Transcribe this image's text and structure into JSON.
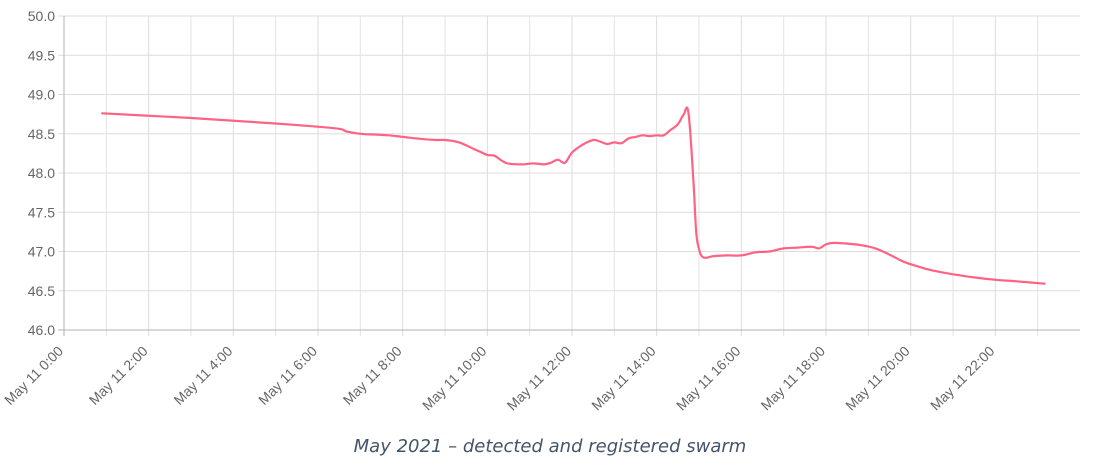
{
  "chart_data": {
    "type": "line",
    "title": "",
    "xlabel": "",
    "ylabel": "",
    "ylim": [
      46.0,
      50.0
    ],
    "y_ticks": [
      "46.0",
      "46.5",
      "47.0",
      "47.5",
      "48.0",
      "48.5",
      "49.0",
      "49.5",
      "50.0"
    ],
    "x_range_hours": [
      0,
      24
    ],
    "x_tick_labels": [
      "May 11 0:00",
      "May 11 2:00",
      "May 11 4:00",
      "May 11 6:00",
      "May 11 8:00",
      "May 11 10:00",
      "May 11 12:00",
      "May 11 14:00",
      "May 11 16:00",
      "May 11 18:00",
      "May 11 20:00",
      "May 11 22:00"
    ],
    "grid": true,
    "line_color": "#ff6384",
    "series": [
      {
        "x": [
          "May 11 0:54",
          "May 11 3:00",
          "May 11 5:00",
          "May 11 6:24",
          "May 11 6:40",
          "May 11 7:00",
          "May 11 7:20",
          "May 11 7:40",
          "May 11 8:00",
          "May 11 8:30",
          "May 11 8:48",
          "May 11 9:00",
          "May 11 9:20",
          "May 11 9:40",
          "May 11 9:50",
          "May 11 10:00",
          "May 11 10:10",
          "May 11 10:20",
          "May 11 10:30",
          "May 11 10:50",
          "May 11 11:00",
          "May 11 11:10",
          "May 11 11:20",
          "May 11 11:30",
          "May 11 11:40",
          "May 11 11:50",
          "May 11 12:00",
          "May 11 12:15",
          "May 11 12:30",
          "May 11 12:40",
          "May 11 12:50",
          "May 11 13:00",
          "May 11 13:10",
          "May 11 13:20",
          "May 11 13:30",
          "May 11 13:40",
          "May 11 13:50",
          "May 11 14:00",
          "May 11 14:10",
          "May 11 14:20",
          "May 11 14:30",
          "May 11 14:38",
          "May 11 14:45",
          "May 11 14:52",
          "May 11 14:56",
          "May 11 15:00",
          "May 11 15:04",
          "May 11 15:10",
          "May 11 15:20",
          "May 11 15:40",
          "May 11 16:00",
          "May 11 16:20",
          "May 11 16:40",
          "May 11 17:00",
          "May 11 17:20",
          "May 11 17:40",
          "May 11 17:50",
          "May 11 18:00",
          "May 11 18:10",
          "May 11 18:30",
          "May 11 18:50",
          "May 11 19:10",
          "May 11 19:30",
          "May 11 19:50",
          "May 11 20:10",
          "May 11 20:30",
          "May 11 21:00",
          "May 11 21:30",
          "May 11 22:00",
          "May 11 22:30",
          "May 11 23:10"
        ],
        "values": [
          48.76,
          48.7,
          48.63,
          48.57,
          48.53,
          48.5,
          48.49,
          48.48,
          48.46,
          48.43,
          48.42,
          48.42,
          48.39,
          48.31,
          48.27,
          48.23,
          48.22,
          48.16,
          48.12,
          48.11,
          48.12,
          48.12,
          48.11,
          48.13,
          48.17,
          48.13,
          48.26,
          48.36,
          48.42,
          48.4,
          48.37,
          48.39,
          48.38,
          48.44,
          48.46,
          48.48,
          48.47,
          48.48,
          48.48,
          48.55,
          48.62,
          48.74,
          48.77,
          47.9,
          47.25,
          47.03,
          46.94,
          46.92,
          46.94,
          46.95,
          46.95,
          46.99,
          47.0,
          47.04,
          47.05,
          47.06,
          47.04,
          47.09,
          47.11,
          47.1,
          47.08,
          47.04,
          46.96,
          46.87,
          46.81,
          46.76,
          46.71,
          46.67,
          46.64,
          46.62,
          46.59
        ]
      }
    ]
  },
  "caption": "May 2021 – detected and registered swarm"
}
